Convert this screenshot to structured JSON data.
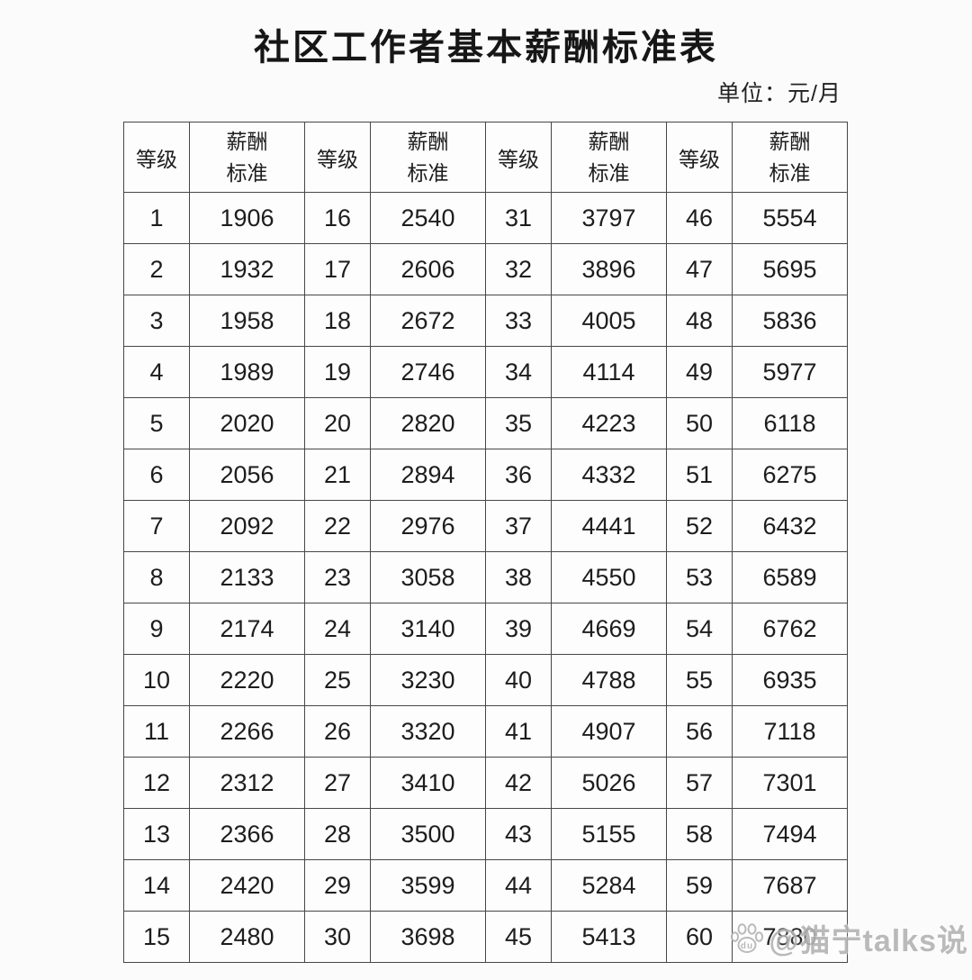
{
  "title": "社区工作者基本薪酬标准表",
  "unit_label": "单位：元/月",
  "watermark": {
    "text": "@猫宁talks说",
    "paw_icon_label": "du"
  },
  "colors": {
    "background": "#fbfbfb",
    "text": "#1d1d1d",
    "table_border": "#474747",
    "watermark": "#b3b3b3"
  },
  "table": {
    "header_grade": "等级",
    "header_salary": "薪酬标准",
    "rows_per_column": 15,
    "column_pairs": [
      {
        "grades": [
          1,
          2,
          3,
          4,
          5,
          6,
          7,
          8,
          9,
          10,
          11,
          12,
          13,
          14,
          15
        ],
        "salaries": [
          1906,
          1932,
          1958,
          1989,
          2020,
          2056,
          2092,
          2133,
          2174,
          2220,
          2266,
          2312,
          2366,
          2420,
          2480
        ]
      },
      {
        "grades": [
          16,
          17,
          18,
          19,
          20,
          21,
          22,
          23,
          24,
          25,
          26,
          27,
          28,
          29,
          30
        ],
        "salaries": [
          2540,
          2606,
          2672,
          2746,
          2820,
          2894,
          2976,
          3058,
          3140,
          3230,
          3320,
          3410,
          3500,
          3599,
          3698
        ]
      },
      {
        "grades": [
          31,
          32,
          33,
          34,
          35,
          36,
          37,
          38,
          39,
          40,
          41,
          42,
          43,
          44,
          45
        ],
        "salaries": [
          3797,
          3896,
          4005,
          4114,
          4223,
          4332,
          4441,
          4550,
          4669,
          4788,
          4907,
          5026,
          5155,
          5284,
          5413
        ]
      },
      {
        "grades": [
          46,
          47,
          48,
          49,
          50,
          51,
          52,
          53,
          54,
          55,
          56,
          57,
          58,
          59,
          60
        ],
        "salaries": [
          5554,
          5695,
          5836,
          5977,
          6118,
          6275,
          6432,
          6589,
          6762,
          6935,
          7118,
          7301,
          7494,
          7687,
          7880
        ]
      }
    ]
  }
}
